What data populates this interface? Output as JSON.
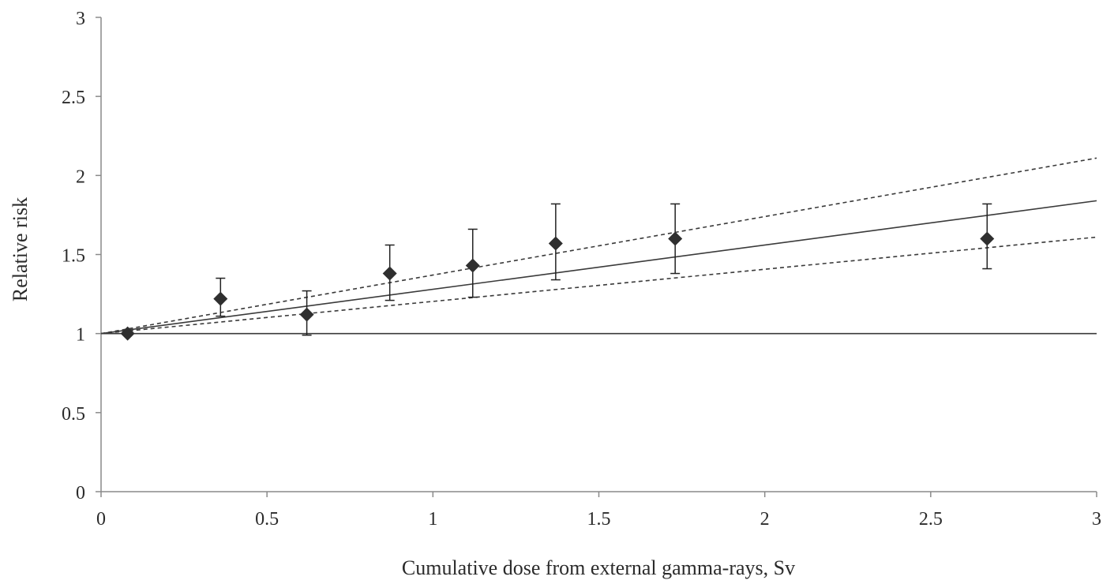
{
  "chart_data": {
    "type": "scatter",
    "title": "",
    "xlabel": "Cumulative dose from external gamma-rays, Sv",
    "ylabel": "Relative risk",
    "xlim": [
      0,
      3
    ],
    "ylim": [
      0,
      3
    ],
    "x_ticks": [
      "0",
      "0.5",
      "1",
      "1.5",
      "2",
      "2.5",
      "3"
    ],
    "y_ticks": [
      "0",
      "0.5",
      "1",
      "1.5",
      "2",
      "2.5",
      "3"
    ],
    "grid": false,
    "points": [
      {
        "x": 0.08,
        "y": 1.0,
        "lower": null,
        "upper": null
      },
      {
        "x": 0.36,
        "y": 1.22,
        "lower": 1.11,
        "upper": 1.35
      },
      {
        "x": 0.62,
        "y": 1.12,
        "lower": 0.99,
        "upper": 1.27
      },
      {
        "x": 0.87,
        "y": 1.38,
        "lower": 1.21,
        "upper": 1.56
      },
      {
        "x": 1.12,
        "y": 1.43,
        "lower": 1.23,
        "upper": 1.66
      },
      {
        "x": 1.37,
        "y": 1.57,
        "lower": 1.34,
        "upper": 1.82
      },
      {
        "x": 1.73,
        "y": 1.6,
        "lower": 1.38,
        "upper": 1.82
      },
      {
        "x": 2.67,
        "y": 1.6,
        "lower": 1.41,
        "upper": 1.82
      }
    ],
    "lines": [
      {
        "style": "solid",
        "x": [
          0,
          3
        ],
        "y": [
          1.0,
          1.84
        ]
      },
      {
        "style": "dashed",
        "x": [
          0,
          3
        ],
        "y": [
          1.0,
          2.11
        ]
      },
      {
        "style": "dashed",
        "x": [
          0,
          3
        ],
        "y": [
          1.0,
          1.61
        ]
      },
      {
        "style": "solid",
        "x": [
          0,
          3
        ],
        "y": [
          1.0,
          1.0
        ]
      }
    ],
    "colors": {
      "marker": "#2f2f2f",
      "line": "#3a3a3a",
      "axis": "#8a8a8a"
    }
  }
}
